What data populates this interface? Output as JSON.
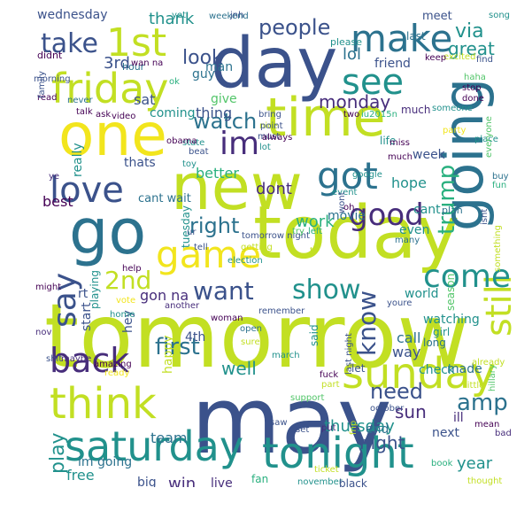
{
  "palette": {
    "yellow": "#f2e51d",
    "yellow_green": "#c2df23",
    "light_green": "#8ed645",
    "green": "#52c569",
    "teal_green": "#2ab07f",
    "teal": "#21918c",
    "blue_teal": "#2c728e",
    "slate_blue": "#3b528b",
    "indigo": "#472d7b",
    "dark_purple": "#440154"
  },
  "words": [
    {
      "text": "tomorrow"
    },
    {
      "text": "may"
    },
    {
      "text": "today"
    },
    {
      "text": "day"
    },
    {
      "text": "going"
    },
    {
      "text": "new"
    },
    {
      "text": "time"
    },
    {
      "text": "one"
    },
    {
      "text": "go"
    },
    {
      "text": "friday"
    },
    {
      "text": "sunday"
    },
    {
      "text": "saturday"
    },
    {
      "text": "tonight"
    },
    {
      "text": "think"
    },
    {
      "text": "game"
    },
    {
      "text": "love"
    },
    {
      "text": "make"
    },
    {
      "text": "1st"
    },
    {
      "text": "got"
    },
    {
      "text": "see"
    },
    {
      "text": "still"
    },
    {
      "text": "im"
    },
    {
      "text": "back"
    },
    {
      "text": "come"
    },
    {
      "text": "say"
    },
    {
      "text": "good"
    },
    {
      "text": "show"
    },
    {
      "text": "watch"
    },
    {
      "text": "want"
    },
    {
      "text": "people"
    },
    {
      "text": "right"
    },
    {
      "text": "take"
    },
    {
      "text": "know"
    },
    {
      "text": "first"
    },
    {
      "text": "trump"
    },
    {
      "text": "look"
    },
    {
      "text": "2nd"
    },
    {
      "text": "play"
    },
    {
      "text": "amp"
    },
    {
      "text": "need"
    },
    {
      "text": "monday"
    },
    {
      "text": "via"
    },
    {
      "text": "well"
    },
    {
      "text": "great"
    },
    {
      "text": "thursday"
    },
    {
      "text": "night"
    },
    {
      "text": "sun"
    },
    {
      "text": "year"
    },
    {
      "text": "lol"
    },
    {
      "text": "work"
    },
    {
      "text": "gon na"
    },
    {
      "text": "dont"
    },
    {
      "text": "thank"
    },
    {
      "text": "wednesday"
    },
    {
      "text": "better"
    },
    {
      "text": "hope"
    },
    {
      "text": "way"
    },
    {
      "text": "3rd"
    },
    {
      "text": "really"
    },
    {
      "text": "sat"
    },
    {
      "text": "thing"
    },
    {
      "text": "team"
    },
    {
      "text": "win"
    },
    {
      "text": "free"
    },
    {
      "text": "live"
    },
    {
      "text": "best"
    },
    {
      "text": "im going"
    },
    {
      "text": "call"
    },
    {
      "text": "watching"
    },
    {
      "text": "guy"
    },
    {
      "text": "coming"
    },
    {
      "text": "cant wait"
    },
    {
      "text": "friend"
    },
    {
      "text": "week"
    },
    {
      "text": "made"
    },
    {
      "text": "check"
    },
    {
      "text": "next"
    },
    {
      "text": "end"
    },
    {
      "text": "4th"
    },
    {
      "text": "start"
    },
    {
      "text": "tuesday"
    },
    {
      "text": "said"
    },
    {
      "text": "world"
    },
    {
      "text": "movie"
    },
    {
      "text": "cant"
    },
    {
      "text": "ill"
    },
    {
      "text": "happy"
    },
    {
      "text": "let"
    },
    {
      "text": "big"
    },
    {
      "text": "meet"
    },
    {
      "text": "last"
    },
    {
      "text": "man"
    },
    {
      "text": "give"
    },
    {
      "text": "thats"
    },
    {
      "text": "even"
    },
    {
      "text": "season"
    },
    {
      "text": "hey"
    },
    {
      "text": "playing"
    },
    {
      "text": "life"
    },
    {
      "text": "fan"
    },
    {
      "text": "much"
    },
    {
      "text": "tomorrow night"
    },
    {
      "text": "last night"
    },
    {
      "text": "rt"
    },
    {
      "text": "girl"
    },
    {
      "text": "long"
    },
    {
      "text": "hour"
    },
    {
      "text": "didnt"
    },
    {
      "text": "please"
    },
    {
      "text": "weekend"
    },
    {
      "text": "excited"
    },
    {
      "text": "keep"
    },
    {
      "text": "find"
    },
    {
      "text": "haha"
    },
    {
      "text": "stop"
    },
    {
      "text": "done"
    },
    {
      "text": "isnt"
    },
    {
      "text": "plan"
    },
    {
      "text": "buy"
    },
    {
      "text": "fun"
    },
    {
      "text": "mean"
    },
    {
      "text": "bad"
    },
    {
      "text": "book"
    },
    {
      "text": "thought"
    },
    {
      "text": "party"
    },
    {
      "text": "place"
    },
    {
      "text": "everyone"
    },
    {
      "text": "song"
    },
    {
      "text": "jnh"
    },
    {
      "text": "yet"
    },
    {
      "text": "wan na"
    },
    {
      "text": "ok"
    },
    {
      "text": "talk"
    },
    {
      "text": "ask"
    },
    {
      "text": "video"
    },
    {
      "text": "never"
    },
    {
      "text": "read"
    },
    {
      "text": "family"
    },
    {
      "text": "morning"
    },
    {
      "text": "ye"
    },
    {
      "text": "state"
    },
    {
      "text": "obama"
    },
    {
      "text": "beat"
    },
    {
      "text": "toy"
    },
    {
      "text": "bring"
    },
    {
      "text": "nice"
    },
    {
      "text": "must"
    },
    {
      "text": "lot"
    },
    {
      "text": "point"
    },
    {
      "text": "always"
    },
    {
      "text": "two"
    },
    {
      "text": "iu2015n"
    },
    {
      "text": "miss"
    },
    {
      "text": "much"
    },
    {
      "text": "someone"
    },
    {
      "text": "google"
    },
    {
      "text": "event"
    },
    {
      "text": "wont"
    },
    {
      "text": "oh"
    },
    {
      "text": "many"
    },
    {
      "text": "something"
    },
    {
      "text": "try"
    },
    {
      "text": "left"
    },
    {
      "text": "tell"
    },
    {
      "text": "getting"
    },
    {
      "text": "election"
    },
    {
      "text": "help"
    },
    {
      "text": "might"
    },
    {
      "text": "vote"
    },
    {
      "text": "home"
    },
    {
      "text": "another"
    },
    {
      "text": "woman"
    },
    {
      "text": "remember"
    },
    {
      "text": "youre"
    },
    {
      "text": "open"
    },
    {
      "text": "sure"
    },
    {
      "text": "nov"
    },
    {
      "text": "shit"
    },
    {
      "text": "maybe"
    },
    {
      "text": "amazing"
    },
    {
      "text": "ready"
    },
    {
      "text": "march"
    },
    {
      "text": "fuck"
    },
    {
      "text": "october"
    },
    {
      "text": "part"
    },
    {
      "text": "support"
    },
    {
      "text": "saw"
    },
    {
      "text": "set"
    },
    {
      "text": "put"
    },
    {
      "text": "fnp"
    },
    {
      "text": "already"
    },
    {
      "text": "hillary"
    },
    {
      "text": "little"
    },
    {
      "text": "ticket"
    },
    {
      "text": "november"
    },
    {
      "text": "black"
    },
    {
      "text": "ur"
    },
    {
      "text": "tv"
    }
  ]
}
